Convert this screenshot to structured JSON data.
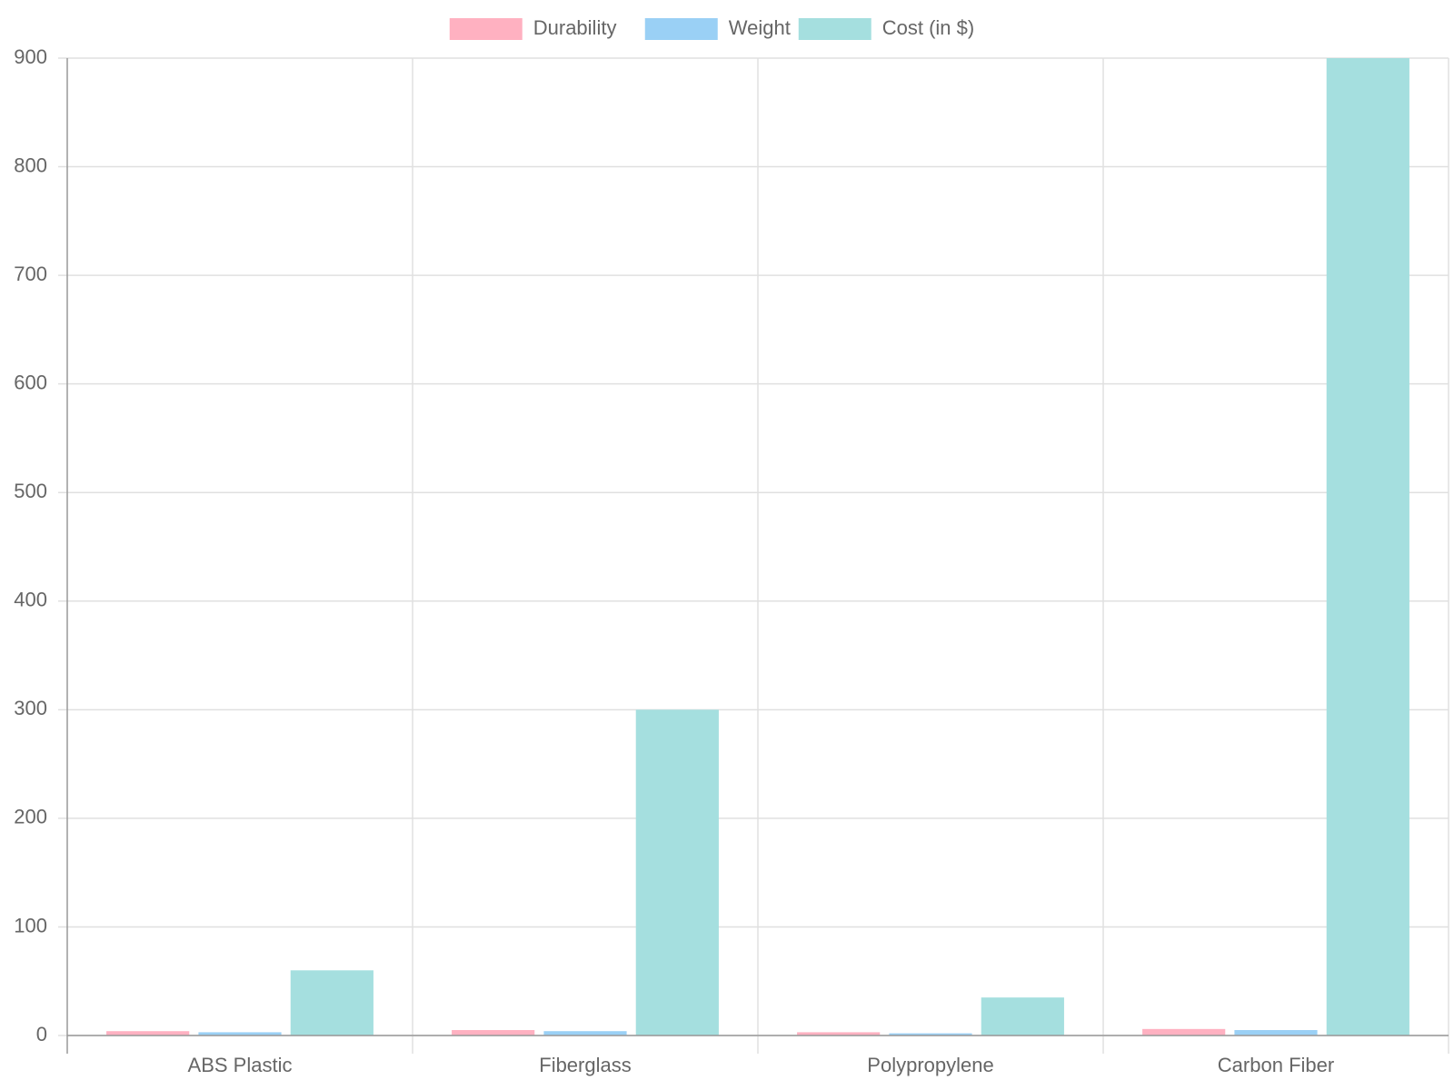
{
  "chart_data": {
    "type": "bar",
    "categories": [
      "ABS Plastic",
      "Fiberglass",
      "Polypropylene",
      "Carbon Fiber"
    ],
    "series": [
      {
        "name": "Durability",
        "color": "#ffb1c1",
        "values": [
          4,
          5,
          3,
          6
        ]
      },
      {
        "name": "Weight",
        "color": "#9ad0f5",
        "values": [
          3,
          4,
          2,
          5
        ]
      },
      {
        "name": "Cost (in $)",
        "color": "#a5dfdf",
        "values": [
          60,
          300,
          35,
          900
        ]
      }
    ],
    "ylim": [
      0,
      900
    ],
    "yticks": [
      0,
      100,
      200,
      300,
      400,
      500,
      600,
      700,
      800,
      900
    ],
    "grid": true,
    "legend": "top"
  }
}
